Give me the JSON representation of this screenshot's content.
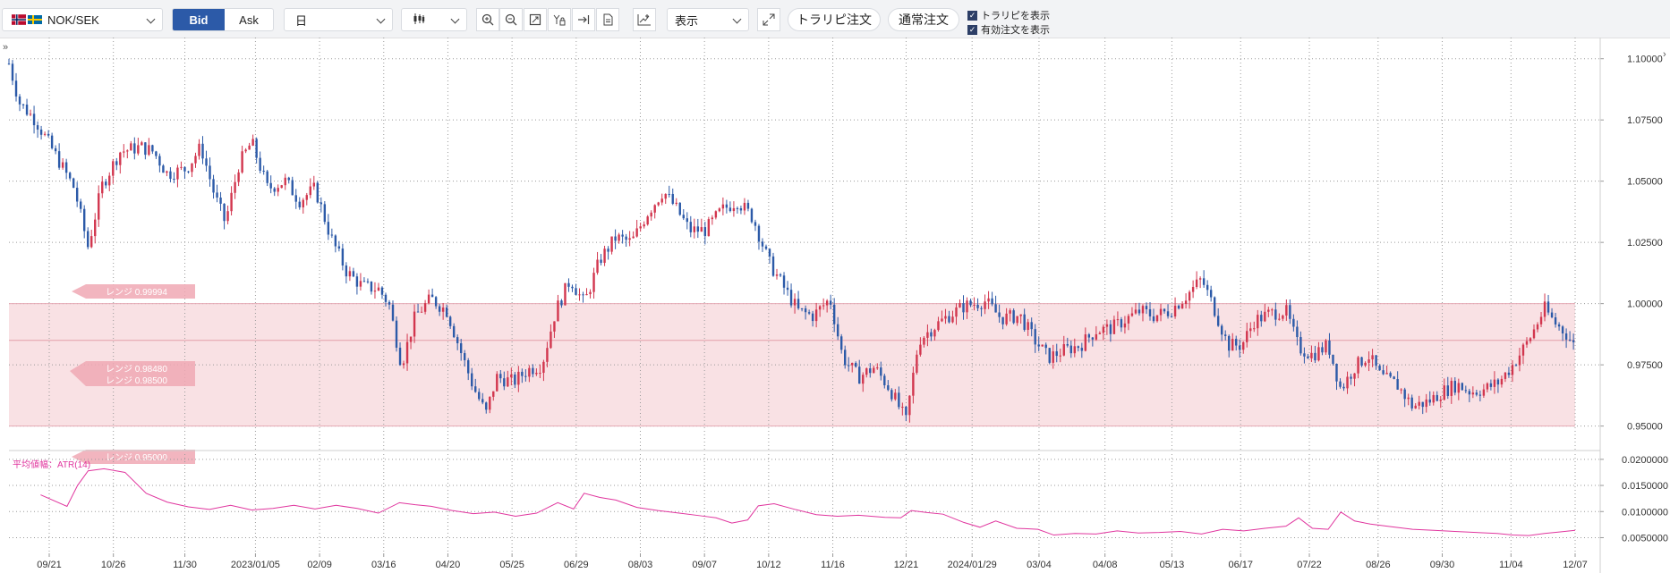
{
  "toolbar": {
    "symbol": "NOK/SEK",
    "bid_label": "Bid",
    "ask_label": "Ask",
    "period": "日",
    "display_label": "表示",
    "trailing_order": "トラリピ注文",
    "normal_order": "通常注文",
    "show_trailing": "トラリピを表示",
    "show_active_orders": "有効注文を表示"
  },
  "colors": {
    "up": "#d2364e",
    "down": "#2c5aa8",
    "range_band": "#f9e1e4",
    "atr_line": "#e0359e",
    "bid_active": "#2c5aa8"
  },
  "chart_data": [
    {
      "type": "candlestick",
      "ylim": [
        0.94,
        1.105
      ],
      "y_ticks": [
        "1.10000",
        "1.07500",
        "1.05000",
        "1.02500",
        "1.00000",
        "0.97500",
        "0.95000"
      ],
      "y_tick_values": [
        1.1,
        1.075,
        1.05,
        1.025,
        1.0,
        0.975,
        0.95
      ],
      "x_ticks": [
        "09/21",
        "10/26",
        "11/30",
        "2023/01/05",
        "02/09",
        "03/16",
        "04/20",
        "05/25",
        "06/29",
        "08/03",
        "09/07",
        "10/12",
        "11/16",
        "12/21",
        "2024/01/29",
        "03/04",
        "04/08",
        "05/13",
        "06/17",
        "07/22",
        "08/26",
        "09/30",
        "11/04",
        "12/07"
      ],
      "close_path": [
        [
          0,
          1.098
        ],
        [
          10,
          1.082
        ],
        [
          25,
          1.075
        ],
        [
          45,
          1.06
        ],
        [
          62,
          1.047
        ],
        [
          75,
          1.023
        ],
        [
          88,
          1.048
        ],
        [
          105,
          1.062
        ],
        [
          125,
          1.064
        ],
        [
          137,
          1.062
        ],
        [
          150,
          1.053
        ],
        [
          168,
          1.055
        ],
        [
          182,
          1.064
        ],
        [
          195,
          1.044
        ],
        [
          205,
          1.033
        ],
        [
          218,
          1.057
        ],
        [
          230,
          1.066
        ],
        [
          245,
          1.047
        ],
        [
          262,
          1.05
        ],
        [
          275,
          1.042
        ],
        [
          290,
          1.047
        ],
        [
          305,
          1.027
        ],
        [
          320,
          1.013
        ],
        [
          335,
          1.007
        ],
        [
          350,
          1.006
        ],
        [
          360,
          1.0
        ],
        [
          372,
          0.975
        ],
        [
          385,
          0.995
        ],
        [
          400,
          1.002
        ],
        [
          415,
          0.997
        ],
        [
          430,
          0.978
        ],
        [
          440,
          0.966
        ],
        [
          452,
          0.955
        ],
        [
          462,
          0.97
        ],
        [
          478,
          0.968
        ],
        [
          492,
          0.973
        ],
        [
          505,
          0.975
        ],
        [
          518,
          0.997
        ],
        [
          532,
          1.01
        ],
        [
          545,
          1.0
        ],
        [
          560,
          1.018
        ],
        [
          575,
          1.027
        ],
        [
          590,
          1.025
        ],
        [
          605,
          1.037
        ],
        [
          620,
          1.046
        ],
        [
          632,
          1.039
        ],
        [
          645,
          1.03
        ],
        [
          660,
          1.03
        ],
        [
          675,
          1.038
        ],
        [
          690,
          1.042
        ],
        [
          705,
          1.035
        ],
        [
          720,
          1.017
        ],
        [
          735,
          1.006
        ],
        [
          748,
          0.997
        ],
        [
          762,
          0.995
        ],
        [
          778,
          1.002
        ],
        [
          790,
          0.978
        ],
        [
          805,
          0.97
        ],
        [
          820,
          0.974
        ],
        [
          835,
          0.965
        ],
        [
          850,
          0.952
        ],
        [
          862,
          0.985
        ],
        [
          875,
          0.99
        ],
        [
          890,
          0.995
        ],
        [
          905,
          0.999
        ],
        [
          925,
          1.001
        ],
        [
          940,
          0.994
        ],
        [
          958,
          0.995
        ],
        [
          972,
          0.985
        ],
        [
          985,
          0.978
        ],
        [
          1000,
          0.981
        ],
        [
          1015,
          0.983
        ],
        [
          1030,
          0.989
        ],
        [
          1045,
          0.99
        ],
        [
          1060,
          0.994
        ],
        [
          1072,
          0.997
        ],
        [
          1085,
          0.995
        ],
        [
          1100,
          0.997
        ],
        [
          1115,
          1.003
        ],
        [
          1130,
          1.01
        ],
        [
          1142,
          0.998
        ],
        [
          1155,
          0.983
        ],
        [
          1168,
          0.983
        ],
        [
          1180,
          0.993
        ],
        [
          1195,
          0.996
        ],
        [
          1210,
          0.997
        ],
        [
          1222,
          0.982
        ],
        [
          1235,
          0.979
        ],
        [
          1250,
          0.983
        ],
        [
          1262,
          0.965
        ],
        [
          1275,
          0.974
        ],
        [
          1288,
          0.979
        ],
        [
          1300,
          0.97
        ],
        [
          1315,
          0.967
        ],
        [
          1330,
          0.958
        ],
        [
          1345,
          0.96
        ],
        [
          1358,
          0.964
        ],
        [
          1372,
          0.967
        ],
        [
          1385,
          0.964
        ],
        [
          1398,
          0.965
        ],
        [
          1412,
          0.968
        ],
        [
          1425,
          0.975
        ],
        [
          1440,
          0.985
        ],
        [
          1455,
          0.998
        ],
        [
          1465,
          0.992
        ],
        [
          1475,
          0.988
        ],
        [
          1484,
          0.982
        ]
      ],
      "range_band": [
        0.95,
        1.0
      ],
      "center_line": 0.985,
      "range_labels": [
        "レンジ 0.99994",
        "レンジ 0.98480",
        "レンジ 0.98500",
        "レンジ 0.95000"
      ]
    },
    {
      "type": "line",
      "title": "平均値幅：ATR(14)",
      "ylim": [
        0.002,
        0.021
      ],
      "y_ticks": [
        "0.0200000",
        "0.0150000",
        "0.0100000",
        "0.0050000"
      ],
      "y_tick_values": [
        0.02,
        0.015,
        0.01,
        0.005
      ],
      "series": [
        {
          "values": [
            [
              30,
              0.0132
            ],
            [
              55,
              0.011
            ],
            [
              65,
              0.015
            ],
            [
              75,
              0.0178
            ],
            [
              90,
              0.0182
            ],
            [
              110,
              0.0175
            ],
            [
              130,
              0.0135
            ],
            [
              150,
              0.0118
            ],
            [
              170,
              0.0109
            ],
            [
              190,
              0.0104
            ],
            [
              210,
              0.0112
            ],
            [
              230,
              0.0103
            ],
            [
              250,
              0.0106
            ],
            [
              270,
              0.0112
            ],
            [
              290,
              0.0105
            ],
            [
              310,
              0.0112
            ],
            [
              330,
              0.0106
            ],
            [
              350,
              0.0097
            ],
            [
              370,
              0.0117
            ],
            [
              385,
              0.0113
            ],
            [
              400,
              0.011
            ],
            [
              420,
              0.0102
            ],
            [
              440,
              0.0096
            ],
            [
              460,
              0.0099
            ],
            [
              480,
              0.0091
            ],
            [
              500,
              0.0097
            ],
            [
              520,
              0.0117
            ],
            [
              535,
              0.0105
            ],
            [
              545,
              0.0135
            ],
            [
              560,
              0.0127
            ],
            [
              575,
              0.0122
            ],
            [
              595,
              0.0108
            ],
            [
              615,
              0.0102
            ],
            [
              635,
              0.0097
            ],
            [
              655,
              0.0092
            ],
            [
              670,
              0.0088
            ],
            [
              685,
              0.0078
            ],
            [
              700,
              0.0084
            ],
            [
              710,
              0.0111
            ],
            [
              725,
              0.0115
            ],
            [
              745,
              0.0104
            ],
            [
              765,
              0.0094
            ],
            [
              785,
              0.0091
            ],
            [
              805,
              0.0093
            ],
            [
              830,
              0.0089
            ],
            [
              845,
              0.0088
            ],
            [
              855,
              0.0102
            ],
            [
              870,
              0.0098
            ],
            [
              885,
              0.0095
            ],
            [
              905,
              0.0079
            ],
            [
              920,
              0.007
            ],
            [
              935,
              0.0082
            ],
            [
              955,
              0.0068
            ],
            [
              975,
              0.0066
            ],
            [
              990,
              0.0055
            ],
            [
              1010,
              0.0058
            ],
            [
              1030,
              0.0057
            ],
            [
              1050,
              0.0063
            ],
            [
              1070,
              0.0059
            ],
            [
              1090,
              0.006
            ],
            [
              1110,
              0.0062
            ],
            [
              1130,
              0.0057
            ],
            [
              1150,
              0.0066
            ],
            [
              1170,
              0.0063
            ],
            [
              1190,
              0.0068
            ],
            [
              1210,
              0.0072
            ],
            [
              1222,
              0.0088
            ],
            [
              1235,
              0.0068
            ],
            [
              1250,
              0.0066
            ],
            [
              1262,
              0.0099
            ],
            [
              1275,
              0.0082
            ],
            [
              1290,
              0.0076
            ],
            [
              1310,
              0.0071
            ],
            [
              1330,
              0.0066
            ],
            [
              1350,
              0.0064
            ],
            [
              1370,
              0.0062
            ],
            [
              1390,
              0.006
            ],
            [
              1410,
              0.0058
            ],
            [
              1425,
              0.0055
            ],
            [
              1440,
              0.0054
            ],
            [
              1455,
              0.0058
            ],
            [
              1470,
              0.0061
            ],
            [
              1484,
              0.0064
            ]
          ]
        }
      ]
    }
  ]
}
